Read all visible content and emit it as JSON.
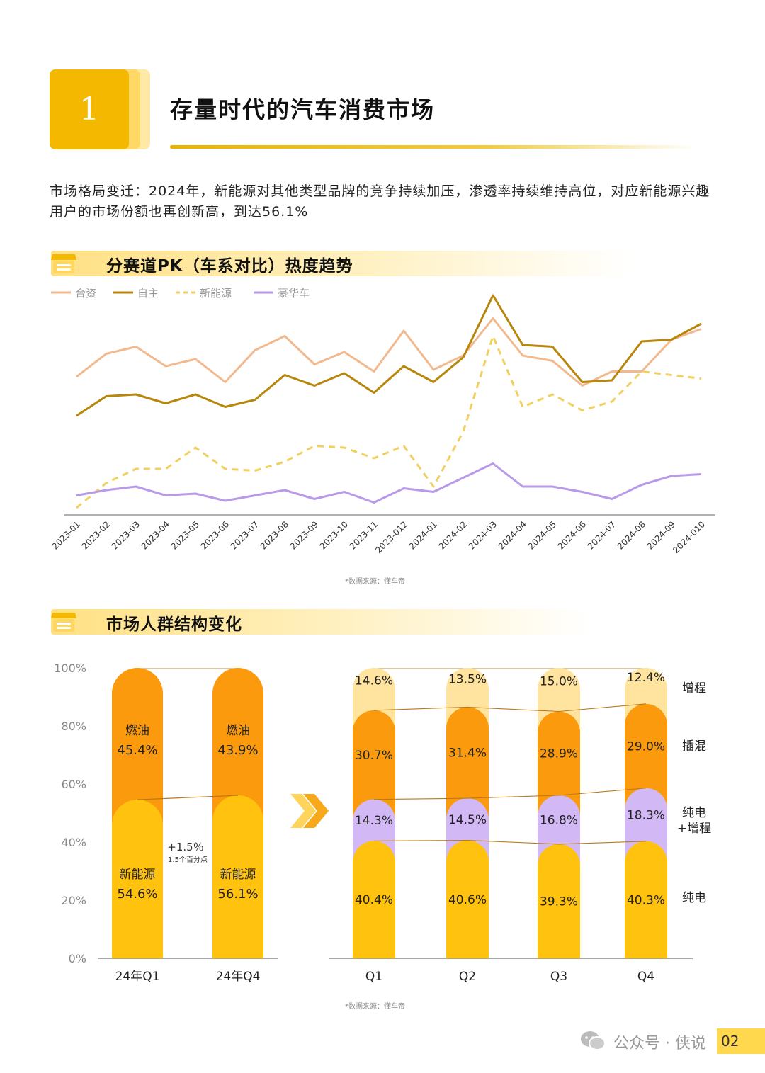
{
  "section_number": "1",
  "main_title": "存量时代的汽车消费市场",
  "intro": "市场格局变迁：2024年，新能源对其他类型品牌的竞争持续加压，渗透率持续维持高位，对应新能源兴趣用户的市场份额也再创新高，到达56.1%",
  "section1_title": "分赛道PK（车系对比）热度趋势",
  "section2_title": "市场人群结构变化",
  "source1": "*数据来源：懂车帝",
  "source2": "*数据来源：懂车帝",
  "watermark": "公众号 · 侠说",
  "page_number": "02",
  "colors": {
    "brand_yellow": "#F5B800",
    "hezi": "#F2B98F",
    "zizhu": "#B8860B",
    "xinnengyuan": "#F0D060",
    "haohua": "#B89AE8",
    "fuel": "#FB9A0C",
    "nev": "#FFC20E",
    "erev": "#FFE4A0",
    "phev": "#FB9A0C",
    "pure_erev": "#D2B8F5",
    "bev": "#FFC20E"
  },
  "chart_data": [
    {
      "type": "line",
      "y_axis_labels_shown": false,
      "legend_position": "top-left",
      "x": [
        "2023-01",
        "2023-02",
        "2023-03",
        "2023-04",
        "2023-05",
        "2023-06",
        "2023-07",
        "2023-08",
        "2023-09",
        "2023-10",
        "2023-11",
        "2023-012",
        "2024-01",
        "2024-02",
        "2024-03",
        "2024-04",
        "2024-05",
        "2024-06",
        "2024-07",
        "2024-08",
        "2024-09",
        "2024-010"
      ],
      "series": [
        {
          "name": "合资",
          "color": "#F2B98F",
          "dash": false,
          "values": [
            70,
            83,
            87,
            76,
            80,
            67,
            85,
            93,
            77,
            84,
            73,
            96,
            74,
            82,
            103,
            82,
            79,
            65,
            73,
            73,
            91,
            97
          ]
        },
        {
          "name": "自主",
          "color": "#B8860B",
          "dash": false,
          "values": [
            48,
            59,
            60,
            55,
            60,
            53,
            57,
            71,
            65,
            72,
            61,
            76,
            67,
            81,
            116,
            88,
            87,
            67,
            68,
            90,
            91,
            100
          ]
        },
        {
          "name": "新能源",
          "color": "#F0D060",
          "dash": true,
          "values": [
            -4,
            10,
            18,
            18,
            30,
            18,
            17,
            22,
            31,
            30,
            24,
            31,
            8,
            39,
            93,
            53,
            60,
            51,
            56,
            73,
            71,
            69
          ]
        },
        {
          "name": "豪华车",
          "color": "#B89AE8",
          "dash": false,
          "values": [
            3,
            6,
            8,
            3,
            4,
            0,
            3,
            6,
            1,
            5,
            -1,
            7,
            5,
            13,
            21,
            8,
            8,
            5,
            1,
            9,
            14,
            15
          ]
        }
      ]
    },
    {
      "type": "bar",
      "stacked": true,
      "categories": [
        "24年Q1",
        "24年Q4"
      ],
      "y_ticks": [
        "0%",
        "20%",
        "40%",
        "60%",
        "80%",
        "100%"
      ],
      "series": [
        {
          "name": "新能源",
          "values": [
            54.6,
            56.1
          ],
          "labels": [
            "54.6%",
            "56.1%"
          ]
        },
        {
          "name": "燃油",
          "values": [
            45.4,
            43.9
          ],
          "labels": [
            "45.4%",
            "43.9%"
          ]
        }
      ],
      "annotation": {
        "main": "+1.5％",
        "sub": "1.5个百分点"
      }
    },
    {
      "type": "bar",
      "stacked": true,
      "categories": [
        "Q1",
        "Q2",
        "Q3",
        "Q4"
      ],
      "series": [
        {
          "name": "纯电",
          "values": [
            40.4,
            40.6,
            39.3,
            40.3
          ],
          "labels": [
            "40.4%",
            "40.6%",
            "39.3%",
            "40.3%"
          ]
        },
        {
          "name": "纯电\n+增程",
          "values": [
            14.3,
            14.5,
            16.8,
            18.3
          ],
          "labels": [
            "14.3%",
            "14.5%",
            "16.8%",
            "18.3%"
          ]
        },
        {
          "name": "插混",
          "values": [
            30.7,
            31.4,
            28.9,
            29.0
          ],
          "labels": [
            "30.7%",
            "31.4%",
            "28.9%",
            "29.0%"
          ]
        },
        {
          "name": "增程",
          "values": [
            14.6,
            13.5,
            15.0,
            12.4
          ],
          "labels": [
            "14.6%",
            "13.5%",
            "15.0%",
            "12.4%"
          ]
        }
      ]
    }
  ]
}
